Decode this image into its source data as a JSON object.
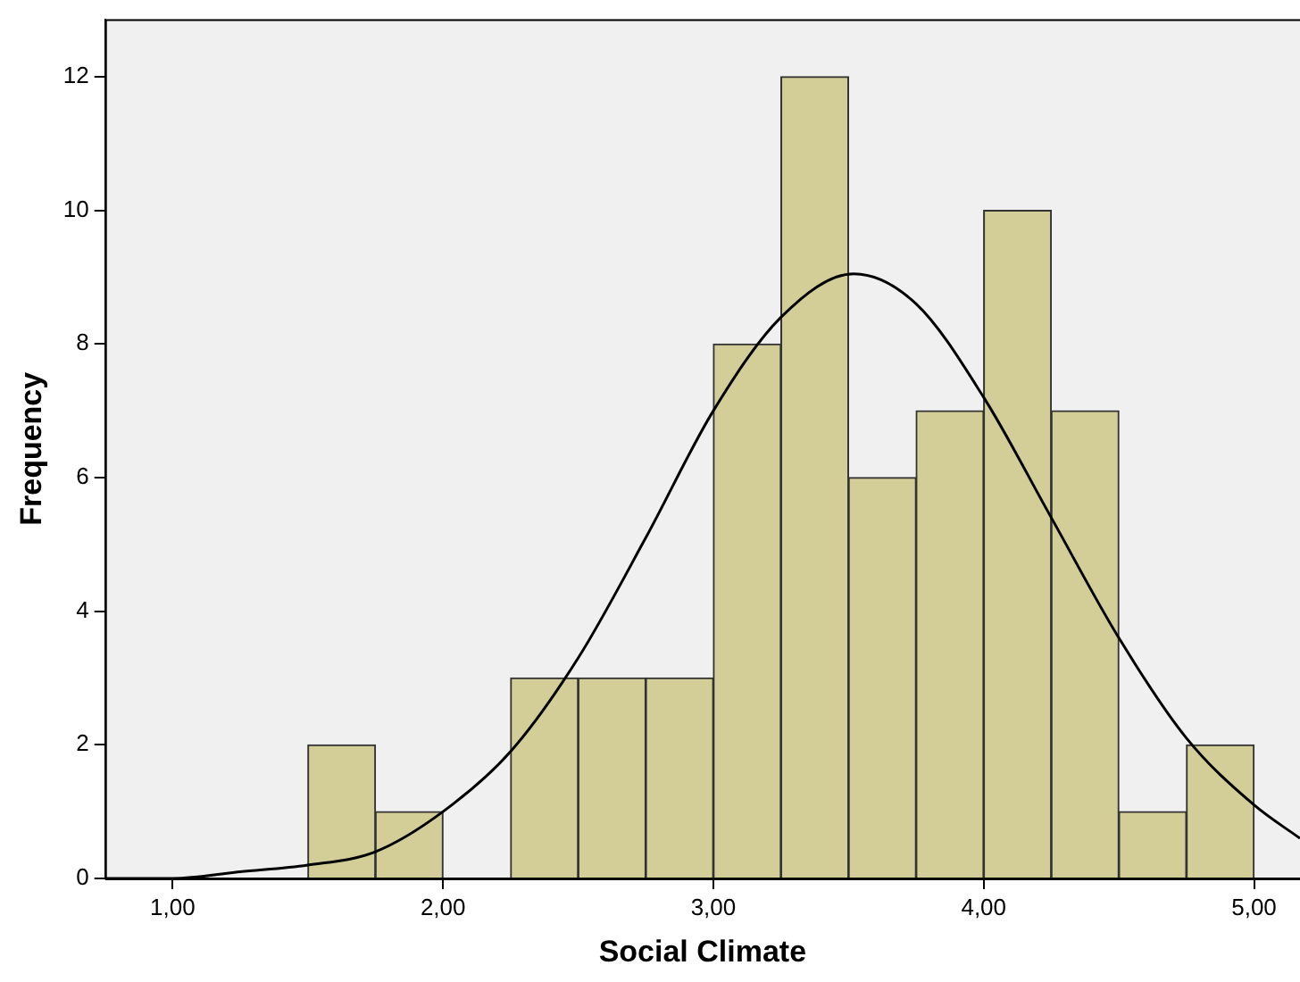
{
  "chart_data": {
    "type": "histogram",
    "xlabel": "Social Climate",
    "ylabel": "Frequency",
    "bins": [
      1.5,
      1.75,
      2.0,
      2.25,
      2.5,
      2.75,
      3.0,
      3.25,
      3.5,
      3.75,
      4.0,
      4.25,
      4.5,
      4.75,
      5.0
    ],
    "values": [
      2,
      1,
      0,
      3,
      3,
      3,
      8,
      12,
      6,
      7,
      10,
      7,
      1,
      2
    ],
    "color": "#d3ce98",
    "series": [
      {
        "type": "line",
        "color": "#000000",
        "x": [
          0.75,
          1.0,
          1.25,
          1.5,
          1.75,
          2.0,
          2.25,
          2.5,
          2.75,
          3.0,
          3.25,
          3.52,
          3.75,
          4.0,
          4.25,
          4.5,
          4.75,
          5.0,
          5.17
        ],
        "values": [
          0.0,
          0.0,
          0.1,
          0.2,
          0.4,
          1.0,
          1.9,
          3.3,
          5.1,
          7.0,
          8.4,
          9.05,
          8.6,
          7.2,
          5.4,
          3.6,
          2.1,
          1.1,
          0.6
        ]
      }
    ],
    "xlim": [
      0.75,
      5.17
    ],
    "xticks": [
      {
        "value": 1,
        "label": "1,00"
      },
      {
        "value": 2,
        "label": "2,00"
      },
      {
        "value": 3,
        "label": "3,00"
      },
      {
        "value": 4,
        "label": "4,00"
      },
      {
        "value": 5,
        "label": "5,00"
      }
    ],
    "ylim": [
      0,
      12.86
    ],
    "yticks": [
      0,
      2,
      4,
      6,
      8,
      10,
      12
    ],
    "grid": false,
    "legend": false,
    "marker": "none",
    "line_style": "solid"
  }
}
